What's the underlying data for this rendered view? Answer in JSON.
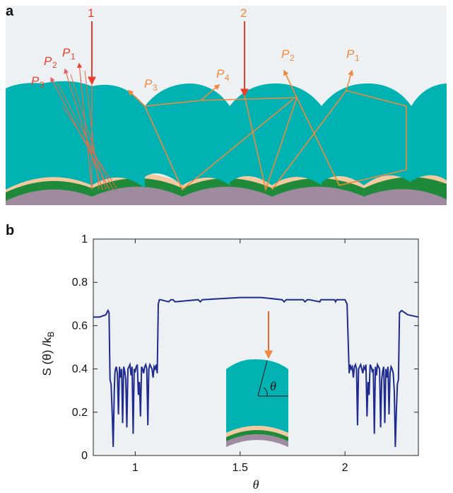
{
  "panel_a": {
    "label": "a",
    "incident_rays": [
      "1",
      "2"
    ],
    "reflected_labels": [
      {
        "base": "P",
        "sub": "1"
      },
      {
        "base": "P",
        "sub": "2"
      },
      {
        "base": "P",
        "sub": "3"
      },
      {
        "base": "P",
        "sub": "4"
      }
    ],
    "colors": {
      "dome": "#00b2b2",
      "arrow_red": "#e83e2b",
      "arrow_orange": "#f0883e",
      "arrow_pink": "#e86070",
      "bg": "#eef1f4"
    }
  },
  "panel_b": {
    "label": "b",
    "inset_angle_label": "θ"
  },
  "chart_data": {
    "type": "line",
    "xlabel": "θ",
    "ylabel_main": "S (θ) /k",
    "ylabel_sub": "B",
    "xlim": [
      0.8,
      2.35
    ],
    "ylim": [
      0,
      1
    ],
    "xticks": [
      "1",
      "1.5",
      "2"
    ],
    "xtick_values": [
      1,
      1.5,
      2
    ],
    "yticks": [
      "0",
      "0.2",
      "0.4",
      "0.6",
      "0.8",
      "1"
    ],
    "ytick_values": [
      0,
      0.2,
      0.4,
      0.6,
      0.8,
      1
    ],
    "grid": false,
    "line_color": "#1f2b8e",
    "series": [
      {
        "x": [
          0.8,
          0.83,
          0.86,
          0.87,
          0.875,
          0.88,
          0.885,
          0.89,
          0.895,
          0.9,
          0.903,
          0.906,
          0.91,
          0.915,
          0.92,
          0.925,
          0.93,
          0.935,
          0.94,
          0.945,
          0.95,
          0.955,
          0.96,
          0.965,
          0.97,
          0.975,
          0.98,
          0.985,
          0.99,
          0.995,
          1.0,
          1.005,
          1.01,
          1.015,
          1.02,
          1.025,
          1.03,
          1.035,
          1.04,
          1.045,
          1.05,
          1.055,
          1.06,
          1.065,
          1.07,
          1.075,
          1.08,
          1.085,
          1.09,
          1.095,
          1.1,
          1.105,
          1.11,
          1.115,
          1.12,
          1.16,
          1.17,
          1.18,
          1.19,
          1.3,
          1.31,
          1.32,
          1.5,
          1.6,
          1.7,
          1.71,
          1.72,
          1.8,
          1.81,
          1.82,
          1.83,
          1.88,
          1.885,
          1.89,
          1.9,
          1.95,
          1.955,
          1.96,
          2.0,
          2.01,
          2.02,
          2.025,
          2.03,
          2.035,
          2.04,
          2.045,
          2.05,
          2.055,
          2.06,
          2.065,
          2.07,
          2.075,
          2.08,
          2.085,
          2.09,
          2.095,
          2.1,
          2.105,
          2.11,
          2.115,
          2.12,
          2.125,
          2.13,
          2.135,
          2.14,
          2.145,
          2.15,
          2.155,
          2.16,
          2.165,
          2.17,
          2.175,
          2.18,
          2.185,
          2.19,
          2.195,
          2.2,
          2.205,
          2.21,
          2.215,
          2.22,
          2.225,
          2.23,
          2.235,
          2.24,
          2.245,
          2.25,
          2.255,
          2.26,
          2.27,
          2.3,
          2.35
        ],
        "values": [
          0.64,
          0.64,
          0.65,
          0.67,
          0.66,
          0.35,
          0.33,
          0.2,
          0.04,
          0.3,
          0.38,
          0.4,
          0.41,
          0.38,
          0.19,
          0.41,
          0.36,
          0.4,
          0.15,
          0.41,
          0.39,
          0.35,
          0.13,
          0.4,
          0.41,
          0.42,
          0.37,
          0.41,
          0.1,
          0.4,
          0.39,
          0.41,
          0.42,
          0.28,
          0.34,
          0.18,
          0.41,
          0.4,
          0.38,
          0.41,
          0.42,
          0.4,
          0.14,
          0.4,
          0.42,
          0.41,
          0.4,
          0.36,
          0.41,
          0.4,
          0.42,
          0.38,
          0.7,
          0.72,
          0.72,
          0.71,
          0.72,
          0.72,
          0.71,
          0.72,
          0.71,
          0.72,
          0.73,
          0.73,
          0.72,
          0.71,
          0.72,
          0.72,
          0.71,
          0.72,
          0.72,
          0.71,
          0.72,
          0.72,
          0.72,
          0.72,
          0.71,
          0.72,
          0.72,
          0.7,
          0.38,
          0.42,
          0.4,
          0.41,
          0.36,
          0.41,
          0.42,
          0.4,
          0.14,
          0.4,
          0.41,
          0.42,
          0.4,
          0.38,
          0.41,
          0.4,
          0.42,
          0.18,
          0.34,
          0.28,
          0.42,
          0.41,
          0.39,
          0.4,
          0.1,
          0.41,
          0.37,
          0.42,
          0.41,
          0.4,
          0.13,
          0.35,
          0.39,
          0.41,
          0.15,
          0.4,
          0.36,
          0.41,
          0.19,
          0.38,
          0.41,
          0.4,
          0.38,
          0.3,
          0.04,
          0.2,
          0.33,
          0.35,
          0.66,
          0.67,
          0.65,
          0.64
        ]
      }
    ]
  }
}
